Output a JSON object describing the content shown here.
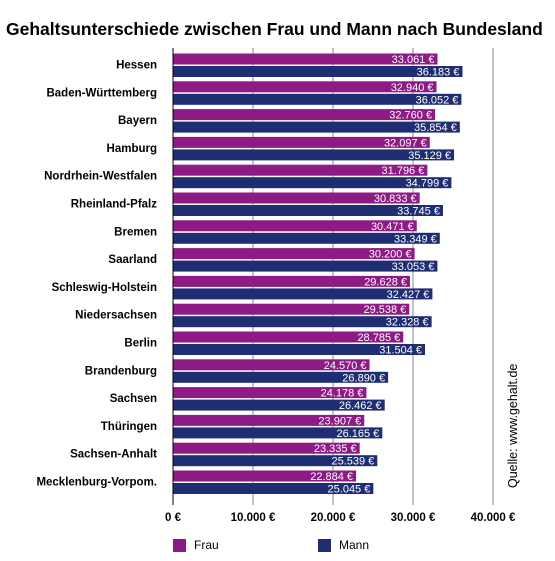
{
  "title": "Gehaltsunterschiede zwischen Frau und Mann nach Bundesland",
  "source": "Quelle: www.gehalt.de",
  "colors": {
    "frau": "#8E1A86",
    "mann": "#1F2E72",
    "grid": "#8a8a8a"
  },
  "legend": {
    "frau": "Frau",
    "mann": "Mann"
  },
  "chart_data": {
    "type": "bar",
    "orientation": "horizontal",
    "title": "Gehaltsunterschiede zwischen Frau und Mann nach Bundesland",
    "categories": [
      "Hessen",
      "Baden-Württemberg",
      "Bayern",
      "Hamburg",
      "Nordrhein-Westfalen",
      "Rheinland-Pfalz",
      "Bremen",
      "Saarland",
      "Schleswig-Holstein",
      "Niedersachsen",
      "Berlin",
      "Brandenburg",
      "Sachsen",
      "Thüringen",
      "Sachsen-Anhalt",
      "Mecklenburg-Vorpom."
    ],
    "series": [
      {
        "name": "Frau",
        "values": [
          33061,
          32940,
          32760,
          32097,
          31796,
          30833,
          30471,
          30200,
          29628,
          29538,
          28785,
          24570,
          24178,
          23907,
          23335,
          22884
        ],
        "labels": [
          "33.061 €",
          "32.940 €",
          "32.760 €",
          "32.097 €",
          "31.796 €",
          "30.833 €",
          "30.471 €",
          "30.200 €",
          "29.628 €",
          "29.538 €",
          "28.785 €",
          "24.570 €",
          "24.178 €",
          "23.907 €",
          "23.335 €",
          "22.884 €"
        ]
      },
      {
        "name": "Mann",
        "values": [
          36183,
          36052,
          35854,
          35129,
          34799,
          33745,
          33349,
          33053,
          32427,
          32328,
          31504,
          26890,
          26462,
          26165,
          25539,
          25045
        ],
        "labels": [
          "36.183 €",
          "36.052 €",
          "35.854 €",
          "35.129 €",
          "34.799 €",
          "33.745 €",
          "33.349 €",
          "33.053 €",
          "32.427 €",
          "32.328 €",
          "31.504 €",
          "26.890 €",
          "26.462 €",
          "26.165 €",
          "25.539 €",
          "25.045 €"
        ]
      }
    ],
    "xlim": [
      0,
      40000
    ],
    "xticks": [
      0,
      10000,
      20000,
      30000,
      40000
    ],
    "xtick_labels": [
      "0 €",
      "10.000 €",
      "20.000 €",
      "30.000 €",
      "40.000 €"
    ],
    "grid": "vertical",
    "legend_position": "bottom"
  }
}
